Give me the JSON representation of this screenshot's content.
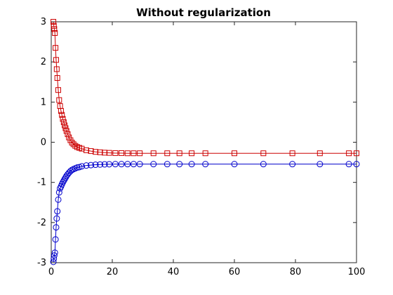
{
  "chart_data": {
    "type": "line",
    "title": "Without regularization",
    "xlabel": "",
    "ylabel": "",
    "xlim": [
      0,
      100
    ],
    "ylim": [
      -3,
      3
    ],
    "xticks": [
      0,
      20,
      40,
      60,
      80,
      100
    ],
    "yticks": [
      -3,
      -2,
      -1,
      0,
      1,
      2,
      3
    ],
    "grid": false,
    "legend": "none",
    "series": [
      {
        "color": "#cc0000",
        "marker": "square",
        "x": [
          0.7,
          0.85,
          1.0,
          1.2,
          1.4,
          1.6,
          1.8,
          2.0,
          2.3,
          2.6,
          2.9,
          3.2,
          3.5,
          3.8,
          4.1,
          4.4,
          4.7,
          5.0,
          5.4,
          5.8,
          6.3,
          6.8,
          7.3,
          7.9,
          8.5,
          9.2,
          10.0,
          11.5,
          13.0,
          14.5,
          16.0,
          17.5,
          19.0,
          21.0,
          23.0,
          25.0,
          27.0,
          29.0,
          33.5,
          38.0,
          42.0,
          46.0,
          50.5,
          60.0,
          69.5,
          79.0,
          88.0,
          97.5,
          100.0
        ],
        "y": [
          3.0,
          2.9,
          2.82,
          2.72,
          2.35,
          2.05,
          1.82,
          1.6,
          1.3,
          1.05,
          0.9,
          0.78,
          0.68,
          0.58,
          0.5,
          0.42,
          0.35,
          0.28,
          0.2,
          0.12,
          0.05,
          -0.01,
          -0.05,
          -0.09,
          -0.12,
          -0.14,
          -0.16,
          -0.2,
          -0.22,
          -0.24,
          -0.25,
          -0.26,
          -0.265,
          -0.27,
          -0.27,
          -0.275,
          -0.275,
          -0.275,
          -0.275,
          -0.275,
          -0.275,
          -0.275,
          -0.275,
          -0.275,
          -0.275,
          -0.275,
          -0.275,
          -0.275,
          -0.275
        ]
      },
      {
        "color": "#0000cc",
        "marker": "circle",
        "x": [
          0.7,
          0.85,
          1.0,
          1.2,
          1.4,
          1.6,
          1.8,
          2.0,
          2.3,
          2.6,
          2.9,
          3.2,
          3.5,
          3.8,
          4.1,
          4.4,
          4.7,
          5.0,
          5.4,
          5.8,
          6.3,
          6.8,
          7.3,
          7.9,
          8.5,
          9.2,
          10.0,
          11.5,
          13.0,
          14.5,
          16.0,
          17.5,
          19.0,
          21.0,
          23.0,
          25.0,
          27.0,
          29.0,
          33.5,
          38.0,
          42.0,
          46.0,
          50.5,
          60.0,
          69.5,
          79.0,
          88.0,
          97.5,
          100.0
        ],
        "y": [
          -2.98,
          -2.9,
          -2.82,
          -2.75,
          -2.42,
          -2.12,
          -1.9,
          -1.72,
          -1.43,
          -1.25,
          -1.15,
          -1.1,
          -1.05,
          -1.0,
          -0.96,
          -0.92,
          -0.88,
          -0.84,
          -0.8,
          -0.76,
          -0.72,
          -0.69,
          -0.67,
          -0.65,
          -0.63,
          -0.62,
          -0.6,
          -0.58,
          -0.57,
          -0.56,
          -0.555,
          -0.55,
          -0.548,
          -0.545,
          -0.545,
          -0.545,
          -0.545,
          -0.545,
          -0.545,
          -0.545,
          -0.545,
          -0.545,
          -0.545,
          -0.545,
          -0.545,
          -0.545,
          -0.545,
          -0.545,
          -0.545
        ]
      }
    ]
  }
}
